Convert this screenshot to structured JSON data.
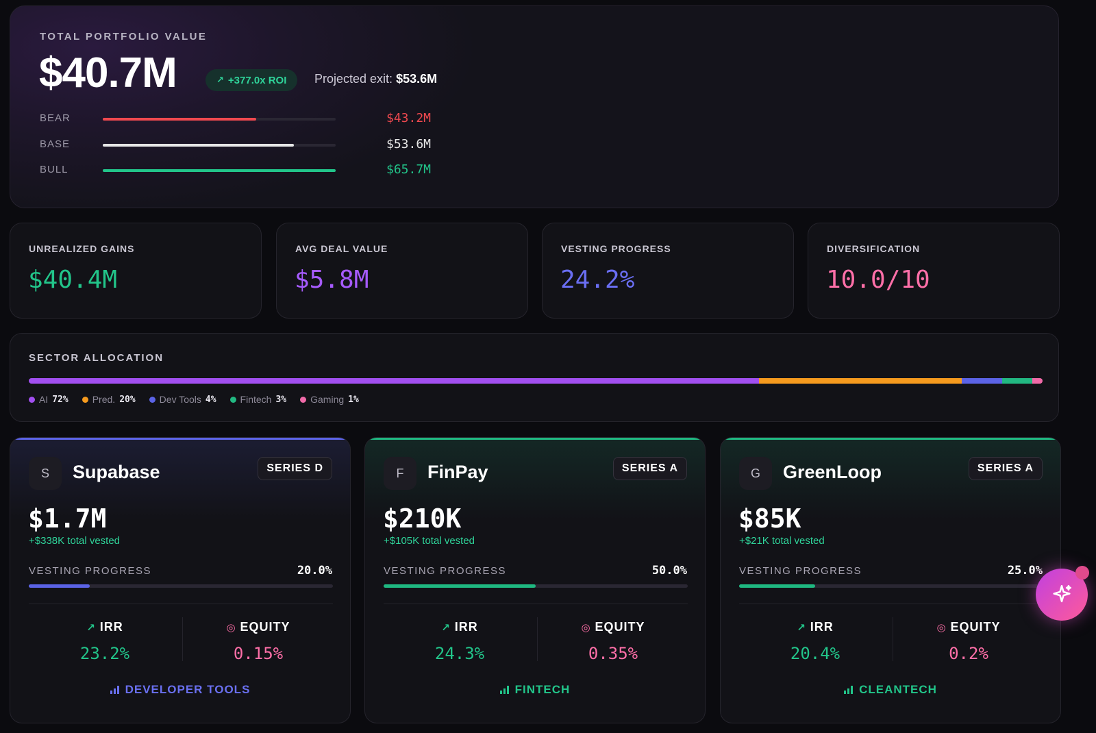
{
  "hero": {
    "label": "TOTAL PORTFOLIO VALUE",
    "value": "$40.7M",
    "roi": "+377.0x ROI",
    "projected_label": "Projected exit:",
    "projected_value": "$53.6M",
    "scenarios": [
      {
        "label": "BEAR",
        "value": "$43.2M",
        "color": "#f0494f",
        "progress": 0.66
      },
      {
        "label": "BASE",
        "value": "$53.6M",
        "color": "#e6e6e6",
        "progress": 0.82
      },
      {
        "label": "BULL",
        "value": "$65.7M",
        "color": "#22c58a",
        "progress": 1.0
      }
    ]
  },
  "metrics": [
    {
      "label": "UNREALIZED GAINS",
      "value": "$40.4M",
      "color": "#22c58a"
    },
    {
      "label": "AVG DEAL VALUE",
      "value": "$5.8M",
      "color": "#a65bff"
    },
    {
      "label": "VESTING PROGRESS",
      "value": "24.2%",
      "color": "#6a6ef2"
    },
    {
      "label": "DIVERSIFICATION",
      "value": "10.0/10",
      "color": "#ff6fa8"
    }
  ],
  "sector": {
    "label": "SECTOR ALLOCATION",
    "items": [
      {
        "name": "AI",
        "pct": "72%",
        "share": 72,
        "color": "#a24ff0"
      },
      {
        "name": "Pred.",
        "pct": "20%",
        "share": 20,
        "color": "#f59a1e"
      },
      {
        "name": "Dev Tools",
        "pct": "4%",
        "share": 4,
        "color": "#5b63e6"
      },
      {
        "name": "Fintech",
        "pct": "3%",
        "share": 3,
        "color": "#22b882"
      },
      {
        "name": "Gaming",
        "pct": "1%",
        "share": 1,
        "color": "#f06aa8"
      }
    ]
  },
  "cards": [
    {
      "initial": "S",
      "name": "Supabase",
      "series": "SERIES D",
      "amount": "$1.7M",
      "vested": "+$338K total vested",
      "vesting_label": "VESTING PROGRESS",
      "vesting_pct": "20.0%",
      "vesting_progress": 0.2,
      "irr_label": "IRR",
      "irr": "23.2%",
      "equity_label": "EQUITY",
      "equity": "0.15%",
      "sector": "DEVELOPER TOOLS",
      "accent": "#5b63e6",
      "sector_color": "#6a70f0"
    },
    {
      "initial": "F",
      "name": "FinPay",
      "series": "SERIES A",
      "amount": "$210K",
      "vested": "+$105K total vested",
      "vesting_label": "VESTING PROGRESS",
      "vesting_pct": "50.0%",
      "vesting_progress": 0.5,
      "irr_label": "IRR",
      "irr": "24.3%",
      "equity_label": "EQUITY",
      "equity": "0.35%",
      "sector": "FINTECH",
      "accent": "#1fb881",
      "sector_color": "#22c58a"
    },
    {
      "initial": "G",
      "name": "GreenLoop",
      "series": "SERIES A",
      "amount": "$85K",
      "vested": "+$21K total vested",
      "vesting_label": "VESTING PROGRESS",
      "vesting_pct": "25.0%",
      "vesting_progress": 0.25,
      "irr_label": "IRR",
      "irr": "20.4%",
      "equity_label": "EQUITY",
      "equity": "0.2%",
      "sector": "CLEANTECH",
      "accent": "#1fb881",
      "sector_color": "#22c58a"
    }
  ],
  "fab": {
    "icon": "sparkle-icon"
  },
  "colors": {
    "positive": "#22c58a",
    "equity": "#ff6fa8"
  }
}
